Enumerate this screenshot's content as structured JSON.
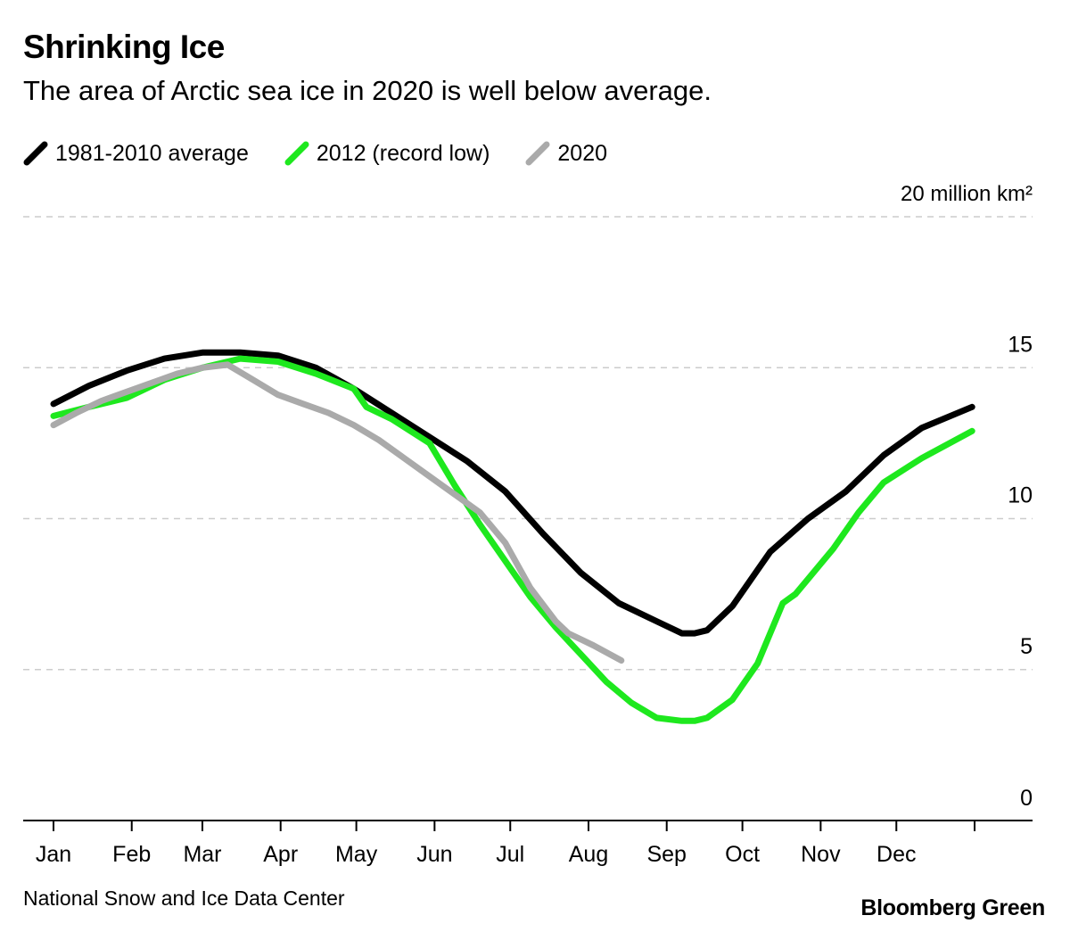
{
  "header": {
    "title": "Shrinking Ice",
    "subtitle": "The area of Arctic sea ice in 2020 is well below average."
  },
  "footer": {
    "source": "National Snow and Ice Data Center",
    "brand": "Bloomberg Green"
  },
  "colors": {
    "average": "#000000",
    "record_low": "#1ee81e",
    "current": "#aaaaaa",
    "gridline": "#cccccc",
    "axis": "#000000"
  },
  "chart_data": {
    "type": "line",
    "title": "Shrinking Ice",
    "subtitle": "The area of Arctic sea ice in 2020 is well below average.",
    "xlabel": "",
    "ylabel": "",
    "y_unit_label": "20 million km²",
    "ylim": [
      0,
      20
    ],
    "xlim": [
      1,
      366
    ],
    "y_ticks": [
      0,
      5,
      10,
      15,
      20
    ],
    "y_tick_labels": [
      "0",
      "5",
      "10",
      "15",
      "20 million km²"
    ],
    "x_ticks": [
      {
        "label": "Jan",
        "day": 1
      },
      {
        "label": "Feb",
        "day": 32
      },
      {
        "label": "Mar",
        "day": 60
      },
      {
        "label": "Apr",
        "day": 91
      },
      {
        "label": "May",
        "day": 121
      },
      {
        "label": "Jun",
        "day": 152
      },
      {
        "label": "Jul",
        "day": 182
      },
      {
        "label": "Aug",
        "day": 213
      },
      {
        "label": "Sep",
        "day": 244
      },
      {
        "label": "Oct",
        "day": 274
      },
      {
        "label": "Nov",
        "day": 305
      },
      {
        "label": "Dec",
        "day": 335
      }
    ],
    "grid": true,
    "grid_axis": "y",
    "legend_position": "top-left",
    "series": [
      {
        "name": "1981-2010 average",
        "color_key": "average",
        "x": [
          1,
          15,
          30,
          45,
          60,
          75,
          90,
          105,
          120,
          135,
          150,
          165,
          180,
          195,
          210,
          225,
          240,
          250,
          255,
          260,
          270,
          285,
          300,
          315,
          330,
          345,
          365
        ],
        "y": [
          13.8,
          14.4,
          14.9,
          15.3,
          15.5,
          15.5,
          15.4,
          15.0,
          14.3,
          13.5,
          12.7,
          11.9,
          10.9,
          9.5,
          8.2,
          7.2,
          6.6,
          6.2,
          6.2,
          6.3,
          7.1,
          8.9,
          10.0,
          10.9,
          12.1,
          13.0,
          13.7
        ]
      },
      {
        "name": "2012 (record low)",
        "color_key": "record_low",
        "x": [
          1,
          15,
          30,
          45,
          60,
          75,
          90,
          105,
          120,
          125,
          135,
          150,
          160,
          170,
          180,
          190,
          200,
          210,
          220,
          230,
          240,
          250,
          255,
          260,
          270,
          280,
          290,
          295,
          300,
          310,
          320,
          330,
          345,
          365
        ],
        "y": [
          13.4,
          13.7,
          14.0,
          14.6,
          15.0,
          15.3,
          15.2,
          14.8,
          14.3,
          13.7,
          13.3,
          12.5,
          11.1,
          9.8,
          8.6,
          7.4,
          6.4,
          5.5,
          4.6,
          3.9,
          3.4,
          3.3,
          3.3,
          3.4,
          4.0,
          5.2,
          7.2,
          7.5,
          8.0,
          9.0,
          10.2,
          11.2,
          12.0,
          12.9
        ]
      },
      {
        "name": "2020",
        "color_key": "current",
        "x": [
          1,
          10,
          20,
          30,
          40,
          50,
          60,
          70,
          80,
          90,
          100,
          110,
          120,
          130,
          140,
          150,
          160,
          170,
          180,
          190,
          200,
          205,
          210,
          215,
          226
        ],
        "y": [
          13.1,
          13.5,
          13.9,
          14.2,
          14.5,
          14.8,
          15.0,
          15.1,
          14.6,
          14.1,
          13.8,
          13.5,
          13.1,
          12.6,
          12.0,
          11.4,
          10.8,
          10.2,
          9.2,
          7.7,
          6.6,
          6.2,
          6.0,
          5.8,
          5.3
        ]
      }
    ]
  }
}
